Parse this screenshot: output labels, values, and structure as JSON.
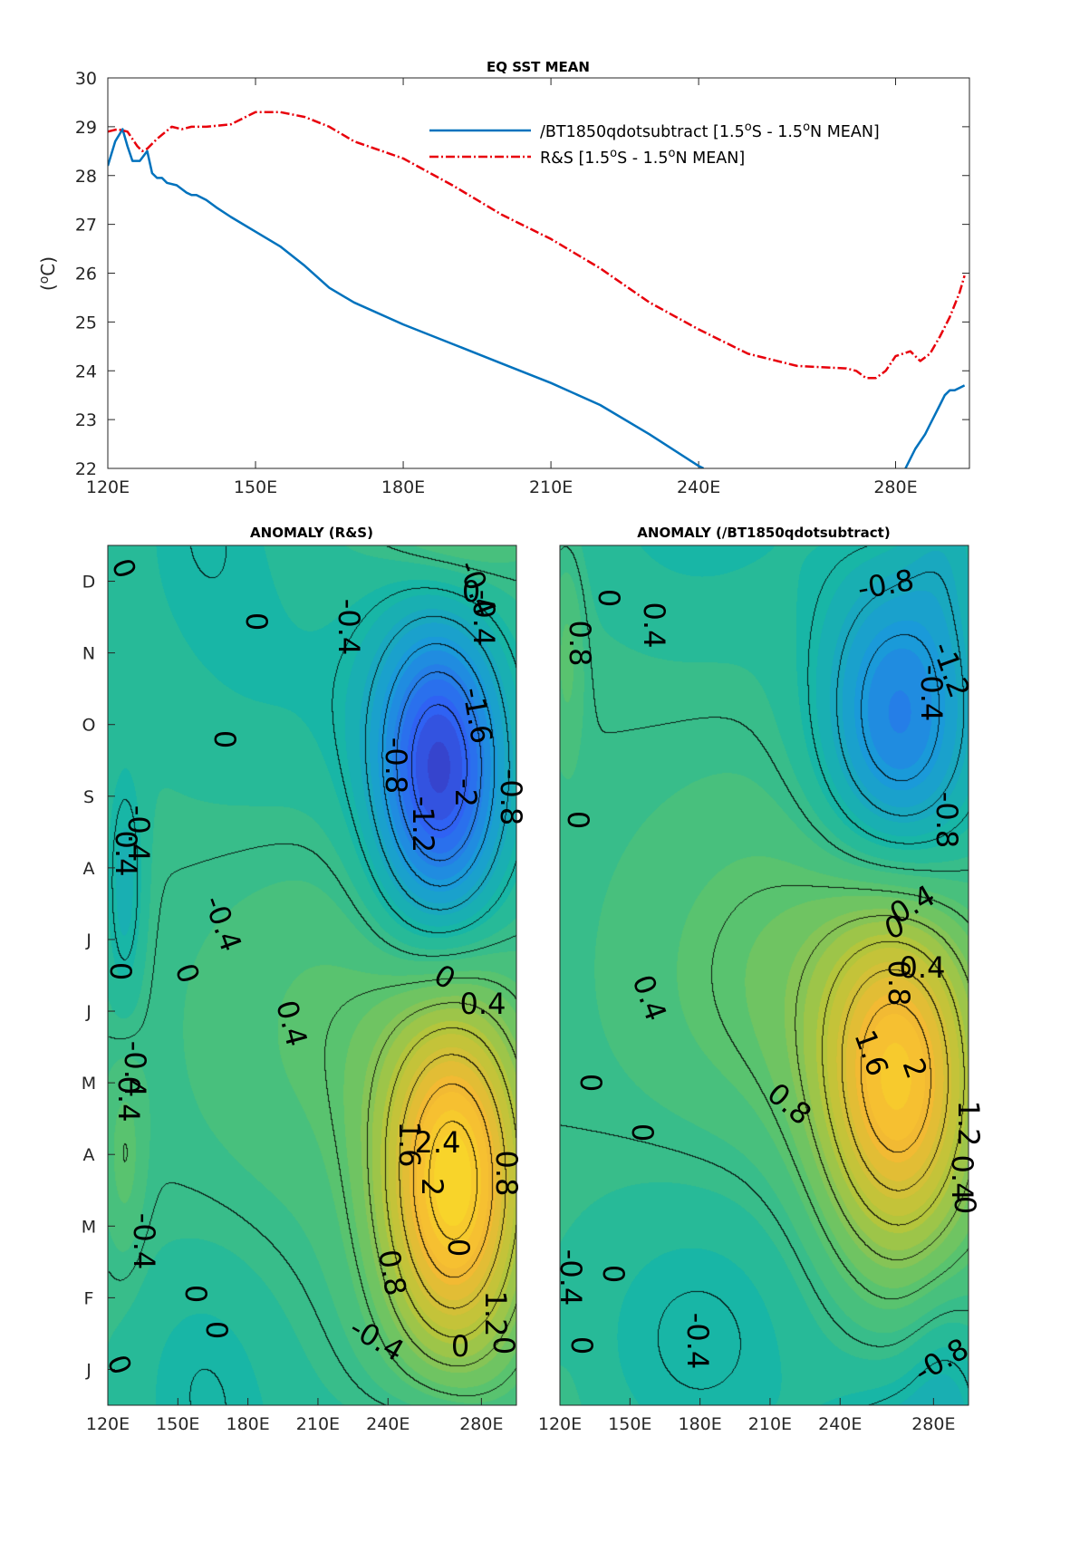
{
  "colors": {
    "series_model": "#0072BD",
    "series_obs": "#E8000B",
    "axis": "#262626",
    "colormap": [
      "#3d26a8",
      "#2f63f4",
      "#1a9bd8",
      "#18b7a4",
      "#5cc46d",
      "#b8c53a",
      "#f5b933",
      "#f9e026"
    ]
  },
  "chart_data": [
    {
      "type": "line",
      "title": "EQ SST MEAN",
      "ylabel": "(oC)",
      "ylabel_parts": {
        "pre": "(",
        "sup": "o",
        "post": "C)"
      },
      "xlim": [
        120,
        295
      ],
      "ylim": [
        22,
        30
      ],
      "xticks": [
        120,
        150,
        180,
        210,
        240,
        280
      ],
      "xtick_labels": [
        "120E",
        "150E",
        "180E",
        "210E",
        "240E",
        "280E"
      ],
      "yticks": [
        22,
        23,
        24,
        25,
        26,
        27,
        28,
        29,
        30
      ],
      "ytick_labels": [
        "22",
        "23",
        "24",
        "25",
        "26",
        "27",
        "28",
        "29",
        "30"
      ],
      "legend_placement": "top-right",
      "series": [
        {
          "name": "/BT1850qdotsubtract [1.5oS - 1.5oN MEAN]",
          "legend_parts": [
            "/BT1850qdotsubtract [1.5",
            "o",
            "S - 1.5",
            "o",
            "N MEAN]"
          ],
          "style": "solid",
          "x": [
            120,
            121.5,
            123,
            124,
            125,
            126.5,
            128,
            129,
            130,
            131,
            132,
            134,
            136,
            137,
            138,
            140,
            142,
            145,
            150,
            155,
            160,
            165,
            170,
            180,
            190,
            200,
            210,
            220,
            230,
            240,
            241,
            260,
            280,
            281,
            282,
            284,
            286,
            287,
            288,
            289,
            290,
            291,
            292,
            293,
            294
          ],
          "values": [
            28.2,
            28.7,
            28.95,
            28.6,
            28.3,
            28.3,
            28.5,
            28.05,
            27.95,
            27.95,
            27.85,
            27.8,
            27.65,
            27.6,
            27.6,
            27.5,
            27.35,
            27.15,
            26.85,
            26.55,
            26.15,
            25.7,
            25.4,
            24.95,
            24.55,
            24.15,
            23.75,
            23.3,
            22.7,
            22.05,
            22.0,
            null,
            null,
            null,
            22.0,
            22.4,
            22.7,
            22.9,
            23.1,
            23.3,
            23.5,
            23.6,
            23.6,
            23.65,
            23.7
          ]
        },
        {
          "name": "R&S [1.5oS - 1.5oN MEAN]",
          "legend_parts": [
            "R&S [1.5",
            "o",
            "S - 1.5",
            "o",
            "N MEAN]"
          ],
          "style": "dash-dot",
          "x": [
            120,
            122,
            124,
            126,
            127,
            128,
            130,
            133,
            135,
            137,
            140,
            145,
            150,
            155,
            160,
            165,
            170,
            180,
            190,
            200,
            210,
            220,
            230,
            240,
            250,
            260,
            270,
            272,
            274,
            276,
            278,
            280,
            283,
            285,
            287,
            289,
            291,
            293,
            294
          ],
          "values": [
            28.9,
            28.95,
            28.9,
            28.6,
            28.5,
            28.55,
            28.75,
            29.0,
            28.95,
            29.0,
            29.0,
            29.05,
            29.3,
            29.3,
            29.2,
            29.0,
            28.7,
            28.35,
            27.8,
            27.2,
            26.7,
            26.1,
            25.4,
            24.85,
            24.35,
            24.1,
            24.05,
            24.0,
            23.85,
            23.85,
            24.0,
            24.3,
            24.4,
            24.2,
            24.35,
            24.7,
            25.1,
            25.6,
            25.95
          ]
        }
      ]
    },
    {
      "type": "heatmap",
      "title": "ANOMALY (R&S)",
      "xlim": [
        120,
        295
      ],
      "xtick_labels": [
        "120E",
        "150E",
        "180E",
        "210E",
        "240E",
        "280E"
      ],
      "xticks": [
        120,
        150,
        180,
        210,
        240,
        280
      ],
      "ytick_labels": [
        "J",
        "F",
        "M",
        "A",
        "M",
        "J",
        "J",
        "A",
        "S",
        "O",
        "N",
        "D"
      ],
      "colorscale": [
        -2.4,
        2.4
      ],
      "features": [
        {
          "x": 268,
          "m": 3.1,
          "sx": 22,
          "sm": 1.8,
          "amp": 2.6
        },
        {
          "x": 262,
          "m": 8.8,
          "sx": 20,
          "sm": 1.6,
          "amp": -2.3
        },
        {
          "x": 127,
          "m": 7.2,
          "sx": 6,
          "sm": 1.2,
          "amp": -0.6
        },
        {
          "x": 127,
          "m": 3.5,
          "sx": 6,
          "sm": 1.0,
          "amp": 0.4
        },
        {
          "x": 160,
          "m": 0.5,
          "sx": 25,
          "sm": 1.3,
          "amp": -0.35
        },
        {
          "x": 215,
          "m": 5.3,
          "sx": 40,
          "sm": 1.8,
          "amp": 0.35
        },
        {
          "x": 200,
          "m": 10.0,
          "sx": 50,
          "sm": 1.5,
          "amp": -0.3
        }
      ],
      "contour_labels": [
        "0",
        "-0.4",
        "0",
        "-0.4",
        "-0.4",
        "0",
        "0",
        "-1.6",
        "-0.8",
        "-1.2",
        "-2",
        "-0.8",
        "-0.4",
        "0.4",
        "-0.4",
        "0",
        "0",
        "0",
        "0.4",
        "0.4",
        "-0.4",
        "0.4",
        "1.6",
        "2.4",
        "0.8",
        "2",
        "0",
        "-0.4",
        "0.8",
        "0",
        "0",
        "-0.4",
        "0",
        "1.2",
        "0",
        "0"
      ]
    },
    {
      "type": "heatmap",
      "title": "ANOMALY (/BT1850qdotsubtract)",
      "xlim": [
        120,
        295
      ],
      "xtick_labels": [
        "120E",
        "150E",
        "180E",
        "210E",
        "240E",
        "280E"
      ],
      "xticks": [
        120,
        150,
        180,
        210,
        240,
        280
      ],
      "colorscale": [
        -2.4,
        2.4
      ],
      "features": [
        {
          "x": 265,
          "m": 4.5,
          "sx": 24,
          "sm": 1.8,
          "amp": 2.2
        },
        {
          "x": 265,
          "m": 9.5,
          "sx": 24,
          "sm": 1.6,
          "amp": -1.6
        },
        {
          "x": 215,
          "m": 6.0,
          "sx": 45,
          "sm": 1.8,
          "amp": 0.5
        },
        {
          "x": 180,
          "m": 1.0,
          "sx": 40,
          "sm": 1.6,
          "amp": -0.45
        },
        {
          "x": 123,
          "m": 10.5,
          "sx": 5,
          "sm": 1.0,
          "amp": 0.4
        },
        {
          "x": 285,
          "m": 0.3,
          "sx": 12,
          "sm": 1.0,
          "amp": -0.4
        }
      ],
      "contour_labels": [
        "-0.8",
        "0",
        "0.8",
        "0.4",
        "-0.4",
        "-1.2",
        "0",
        "-0.8",
        "0.4",
        "0",
        "0.8",
        "0.4",
        "0.4",
        "1.6",
        "2",
        "0",
        "0.8",
        "0",
        "1.2",
        "0.4",
        "0",
        "0",
        "-0.4",
        "-0.4",
        "0",
        "-0.8"
      ]
    }
  ]
}
